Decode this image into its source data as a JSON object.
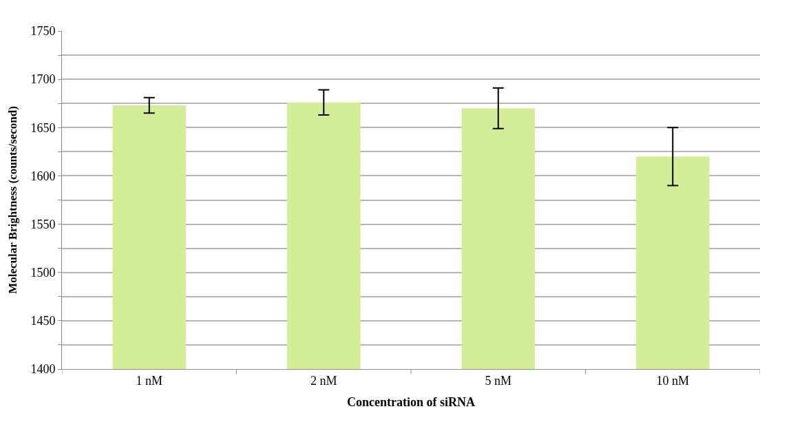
{
  "chart_data": {
    "type": "bar",
    "xlabel": "Concentration of siRNA",
    "ylabel": "Molecular Brightness (counts/second)",
    "categories": [
      "1 nM",
      "2 nM",
      "5 nM",
      "10 nM"
    ],
    "values": [
      1673,
      1676,
      1670,
      1620
    ],
    "errors": [
      8,
      13,
      21,
      30
    ],
    "color": "#d4ee98",
    "ylim": [
      1400,
      1750
    ],
    "yticks": [
      1400,
      {
        "value": 1425,
        "label": null
      },
      1450,
      {
        "value": 1475,
        "label": null
      },
      1500,
      {
        "value": 1525,
        "label": null
      },
      1550,
      {
        "value": 1575,
        "label": null
      },
      1600,
      {
        "value": 1625,
        "label": null
      },
      1650,
      {
        "value": 1675,
        "label": null
      },
      1700,
      {
        "value": 1725,
        "label": null
      },
      1750
    ],
    "grid": "y",
    "legend": false
  }
}
